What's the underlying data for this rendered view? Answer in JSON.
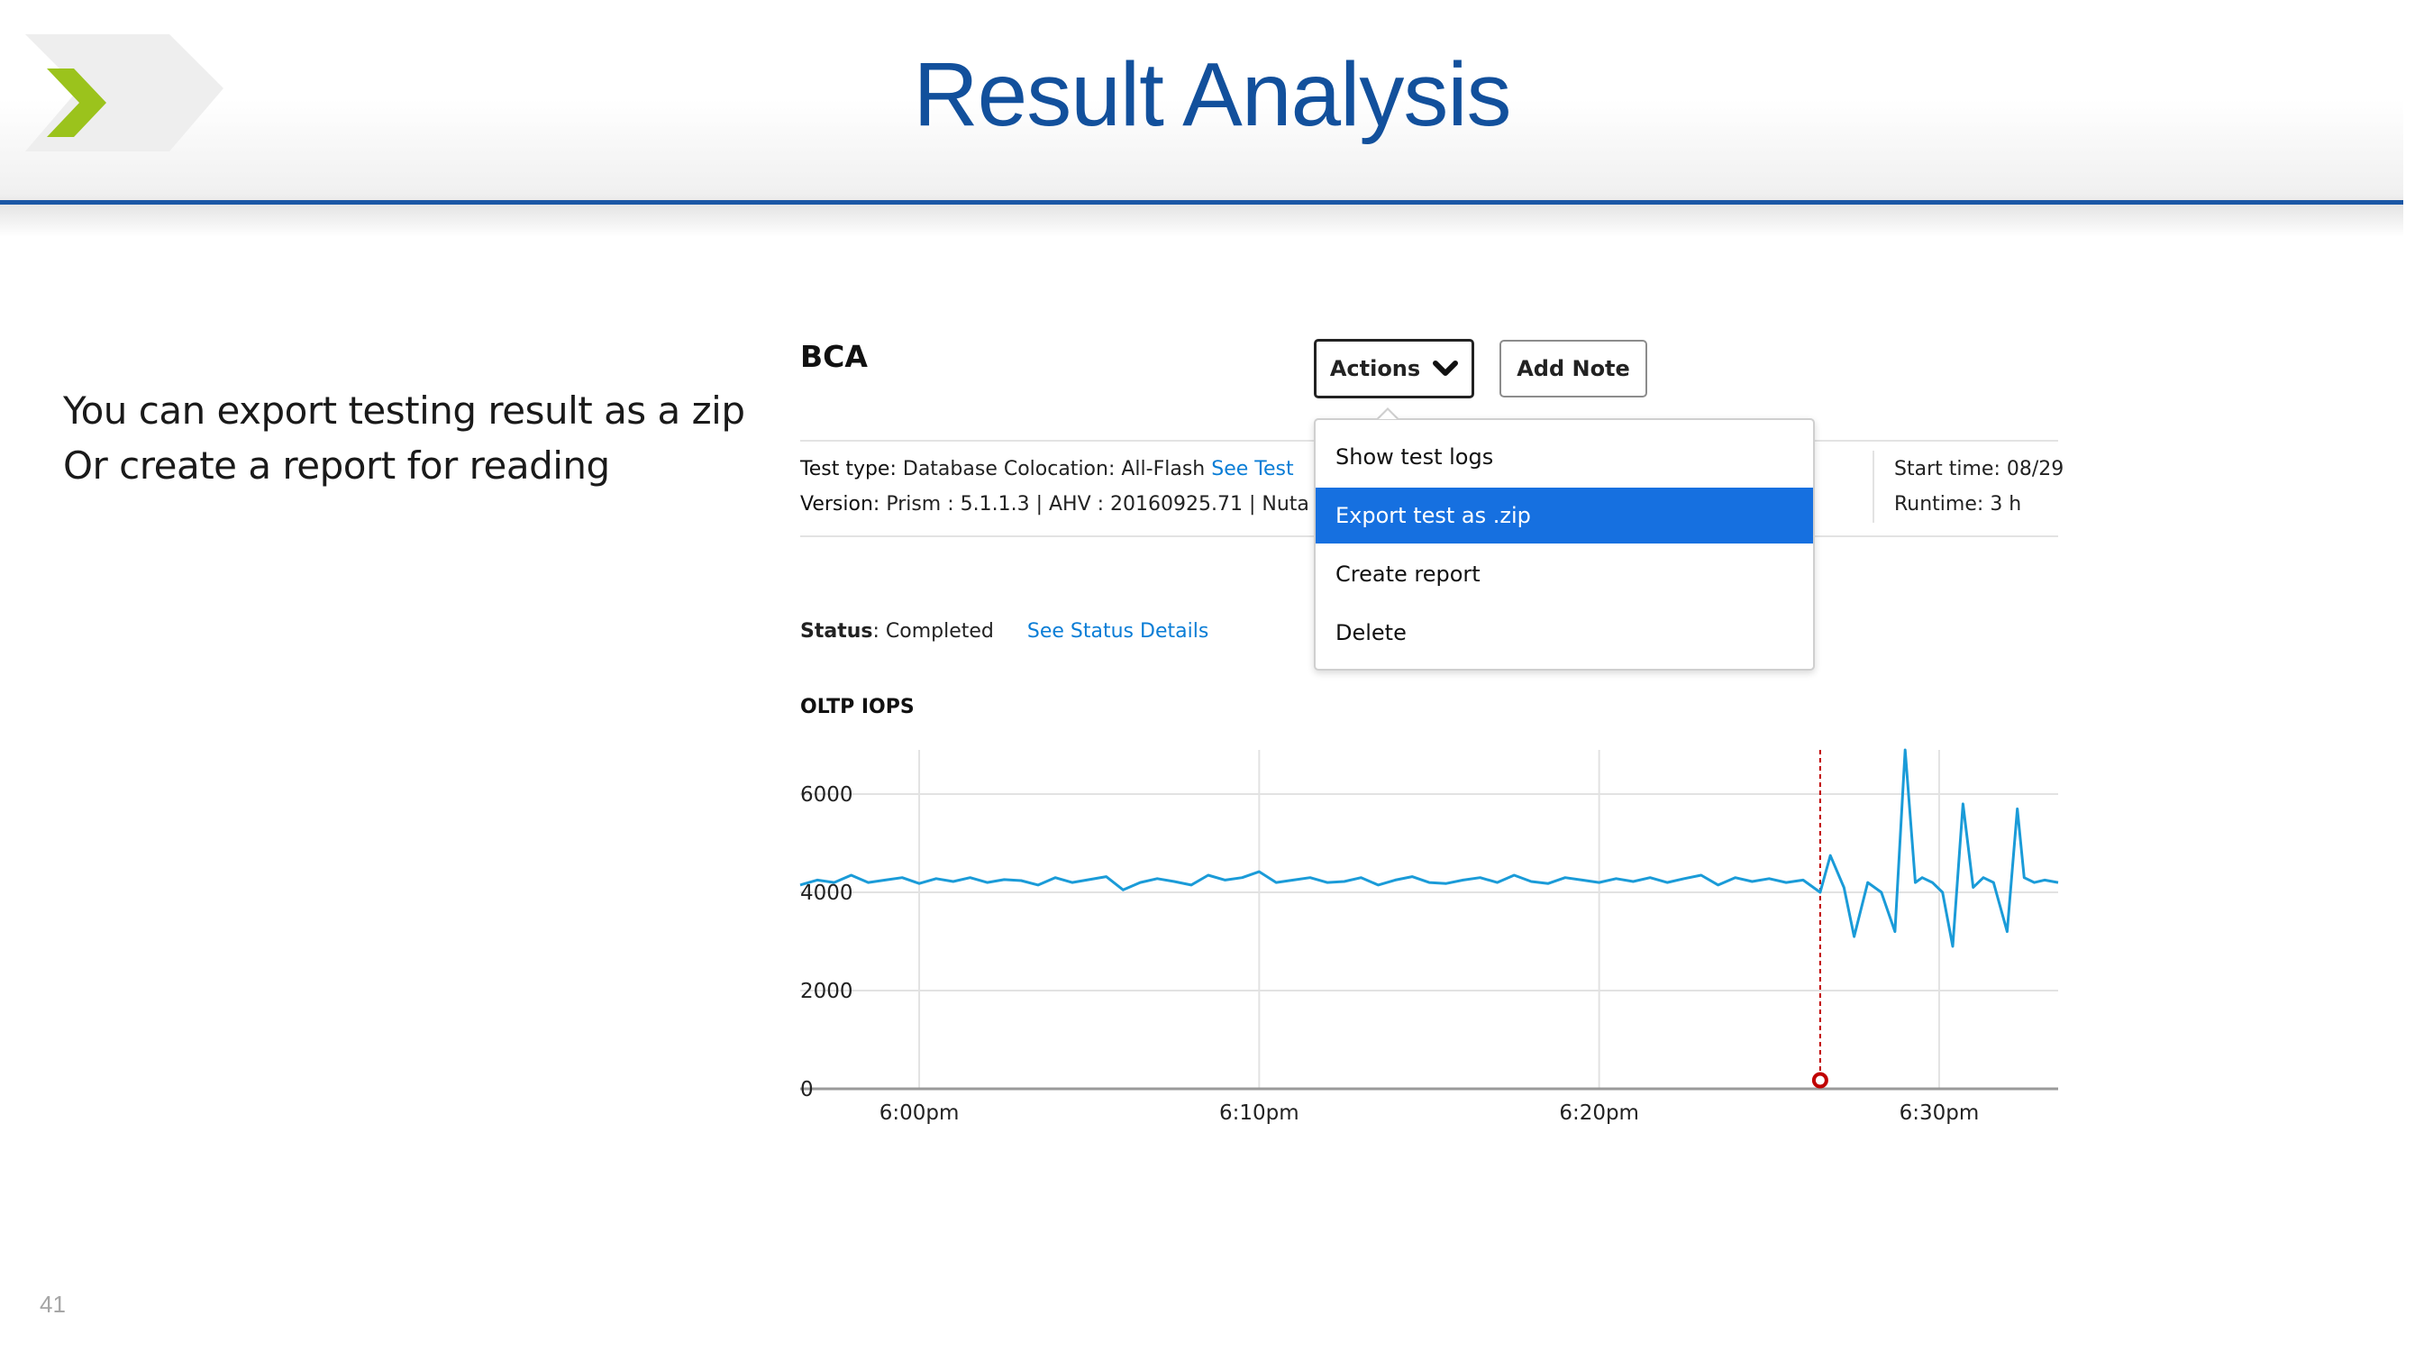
{
  "slide": {
    "title": "Result Analysis",
    "description_lines": [
      "You can export testing result as a zip",
      "Or create a report for reading"
    ],
    "page_number": "41",
    "accent_color": "#1b57a5",
    "logo_color": "#9bc31c"
  },
  "app": {
    "title": "BCA",
    "actions_button": "Actions",
    "add_note_button": "Add Note",
    "actions_menu": {
      "items": [
        "Show test logs",
        "Export test as .zip",
        "Create report",
        "Delete"
      ],
      "selected_index": 1,
      "selected_color": "#1670e0"
    },
    "info": {
      "test_type_label": "Test type:",
      "test_type_value": "Database Colocation: All-Flash",
      "test_type_link": "See Test",
      "version_label": "Version:",
      "version_value": "Prism : 5.1.1.3 |  AHV : 20160925.71 |  Nuta",
      "start_time_label": "Start time:",
      "start_time_value": "08/29",
      "runtime_label": "Runtime:",
      "runtime_value": "3 h"
    },
    "status": {
      "label": "Status",
      "value": "Completed",
      "link": "See Status Details"
    },
    "chart_title": "OLTP IOPS"
  },
  "chart_data": {
    "type": "line",
    "title": "OLTP IOPS",
    "x_tick_labels": [
      "6:00pm",
      "6:10pm",
      "6:20pm",
      "6:30pm"
    ],
    "x_ticks_min": [
      0,
      10,
      20,
      30
    ],
    "xlim_min": [
      -3.5,
      33.5
    ],
    "y_ticks": [
      0,
      2000,
      4000,
      6000
    ],
    "ylim": [
      0,
      6900
    ],
    "grid": true,
    "line_color": "#1a9bd8",
    "marker": {
      "x_min": 26.5,
      "y": 100,
      "color": "#c00000"
    },
    "series": [
      {
        "x": [
          -3.5,
          -3,
          -2.5,
          -2,
          -1.5,
          -1,
          -0.5,
          0,
          0.5,
          1,
          1.5,
          2,
          2.5,
          3,
          3.5,
          4,
          4.5,
          5,
          5.5,
          6,
          6.5,
          7,
          7.5,
          8,
          8.5,
          9,
          9.5,
          10,
          10.5,
          11,
          11.5,
          12,
          12.5,
          13,
          13.5,
          14,
          14.5,
          15,
          15.5,
          16,
          16.5,
          17,
          17.5,
          18,
          18.5,
          19,
          19.5,
          20,
          20.5,
          21,
          21.5,
          22,
          22.5,
          23,
          23.5,
          24,
          24.5,
          25,
          25.5,
          26,
          26.5,
          26.8,
          27.2,
          27.5,
          27.9,
          28.3,
          28.7,
          29,
          29.3,
          29.5,
          29.8,
          30.1,
          30.4,
          30.7,
          31,
          31.3,
          31.6,
          32,
          32.3,
          32.5,
          32.8,
          33.1,
          33.5
        ],
        "y": [
          4150,
          4250,
          4200,
          4350,
          4200,
          4250,
          4300,
          4180,
          4280,
          4220,
          4300,
          4200,
          4260,
          4240,
          4150,
          4300,
          4200,
          4260,
          4320,
          4050,
          4200,
          4280,
          4220,
          4150,
          4350,
          4250,
          4300,
          4420,
          4200,
          4250,
          4300,
          4200,
          4220,
          4300,
          4150,
          4250,
          4320,
          4200,
          4180,
          4250,
          4300,
          4200,
          4350,
          4220,
          4180,
          4300,
          4250,
          4200,
          4280,
          4220,
          4300,
          4200,
          4280,
          4350,
          4150,
          4300,
          4220,
          4280,
          4200,
          4250,
          4000,
          4750,
          4100,
          3100,
          4200,
          4000,
          3200,
          6900,
          4200,
          4300,
          4200,
          4000,
          2900,
          5800,
          4100,
          4300,
          4200,
          3200,
          5700,
          4300,
          4200,
          4250,
          4200
        ]
      }
    ]
  }
}
